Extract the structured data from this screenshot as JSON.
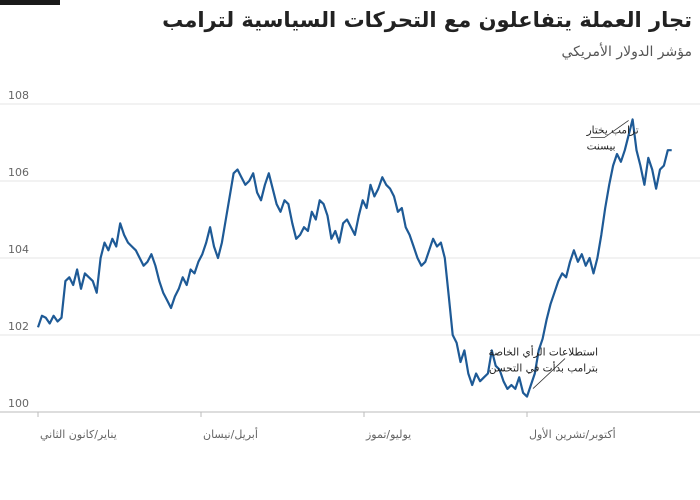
{
  "title": "تجار العملة يتفاعلون مع التحركات السياسية لترامب",
  "subtitle": "مؤشر الدولار الأمريكي",
  "colors": {
    "line": "#1e5a96",
    "grid": "#e6e6e6",
    "axis": "#bbbbbb",
    "text": "#222222"
  },
  "chart_data": {
    "type": "line",
    "ylim": [
      100,
      108
    ],
    "yticks": [
      100,
      102,
      104,
      106,
      108
    ],
    "xlim": [
      0,
      1
    ],
    "grid": true,
    "x_tick_labels": [
      {
        "label": "يناير/كانون الثاني",
        "x": 0.0
      },
      {
        "label": "أبريل/نيسان",
        "x": 0.25
      },
      {
        "label": "يوليو/تموز",
        "x": 0.5
      },
      {
        "label": "أكتوبر/تشرين الأول",
        "x": 0.75
      }
    ],
    "series": [
      {
        "values": [
          [
            0.0,
            102.2
          ],
          [
            0.006,
            102.5
          ],
          [
            0.012,
            102.45
          ],
          [
            0.018,
            102.3
          ],
          [
            0.024,
            102.5
          ],
          [
            0.03,
            102.35
          ],
          [
            0.036,
            102.45
          ],
          [
            0.042,
            103.4
          ],
          [
            0.048,
            103.5
          ],
          [
            0.054,
            103.3
          ],
          [
            0.06,
            103.7
          ],
          [
            0.066,
            103.2
          ],
          [
            0.072,
            103.6
          ],
          [
            0.078,
            103.5
          ],
          [
            0.084,
            103.4
          ],
          [
            0.09,
            103.1
          ],
          [
            0.096,
            104.0
          ],
          [
            0.102,
            104.4
          ],
          [
            0.108,
            104.2
          ],
          [
            0.114,
            104.5
          ],
          [
            0.12,
            104.3
          ],
          [
            0.126,
            104.9
          ],
          [
            0.132,
            104.6
          ],
          [
            0.138,
            104.4
          ],
          [
            0.144,
            104.3
          ],
          [
            0.15,
            104.2
          ],
          [
            0.156,
            104.0
          ],
          [
            0.162,
            103.8
          ],
          [
            0.168,
            103.9
          ],
          [
            0.174,
            104.1
          ],
          [
            0.18,
            103.8
          ],
          [
            0.186,
            103.4
          ],
          [
            0.192,
            103.1
          ],
          [
            0.198,
            102.9
          ],
          [
            0.204,
            102.7
          ],
          [
            0.21,
            103.0
          ],
          [
            0.216,
            103.2
          ],
          [
            0.222,
            103.5
          ],
          [
            0.228,
            103.3
          ],
          [
            0.234,
            103.7
          ],
          [
            0.24,
            103.6
          ],
          [
            0.246,
            103.9
          ],
          [
            0.252,
            104.1
          ],
          [
            0.258,
            104.4
          ],
          [
            0.264,
            104.8
          ],
          [
            0.27,
            104.3
          ],
          [
            0.276,
            104.0
          ],
          [
            0.282,
            104.4
          ],
          [
            0.288,
            105.0
          ],
          [
            0.294,
            105.6
          ],
          [
            0.3,
            106.2
          ],
          [
            0.306,
            106.3
          ],
          [
            0.312,
            106.1
          ],
          [
            0.318,
            105.9
          ],
          [
            0.324,
            106.0
          ],
          [
            0.33,
            106.2
          ],
          [
            0.336,
            105.7
          ],
          [
            0.342,
            105.5
          ],
          [
            0.348,
            105.9
          ],
          [
            0.354,
            106.2
          ],
          [
            0.36,
            105.8
          ],
          [
            0.366,
            105.4
          ],
          [
            0.372,
            105.2
          ],
          [
            0.378,
            105.5
          ],
          [
            0.384,
            105.4
          ],
          [
            0.39,
            104.9
          ],
          [
            0.396,
            104.5
          ],
          [
            0.402,
            104.6
          ],
          [
            0.408,
            104.8
          ],
          [
            0.414,
            104.7
          ],
          [
            0.42,
            105.2
          ],
          [
            0.426,
            105.0
          ],
          [
            0.432,
            105.5
          ],
          [
            0.438,
            105.4
          ],
          [
            0.444,
            105.1
          ],
          [
            0.45,
            104.5
          ],
          [
            0.456,
            104.7
          ],
          [
            0.462,
            104.4
          ],
          [
            0.468,
            104.9
          ],
          [
            0.474,
            105.0
          ],
          [
            0.48,
            104.8
          ],
          [
            0.486,
            104.6
          ],
          [
            0.492,
            105.1
          ],
          [
            0.498,
            105.5
          ],
          [
            0.504,
            105.3
          ],
          [
            0.51,
            105.9
          ],
          [
            0.516,
            105.6
          ],
          [
            0.522,
            105.8
          ],
          [
            0.528,
            106.1
          ],
          [
            0.534,
            105.9
          ],
          [
            0.54,
            105.8
          ],
          [
            0.546,
            105.6
          ],
          [
            0.552,
            105.2
          ],
          [
            0.558,
            105.3
          ],
          [
            0.564,
            104.8
          ],
          [
            0.57,
            104.6
          ],
          [
            0.576,
            104.3
          ],
          [
            0.582,
            104.0
          ],
          [
            0.588,
            103.8
          ],
          [
            0.594,
            103.9
          ],
          [
            0.6,
            104.2
          ],
          [
            0.606,
            104.5
          ],
          [
            0.612,
            104.3
          ],
          [
            0.618,
            104.4
          ],
          [
            0.624,
            104.0
          ],
          [
            0.63,
            103.0
          ],
          [
            0.636,
            102.0
          ],
          [
            0.642,
            101.8
          ],
          [
            0.648,
            101.3
          ],
          [
            0.654,
            101.6
          ],
          [
            0.66,
            101.0
          ],
          [
            0.666,
            100.7
          ],
          [
            0.672,
            101.0
          ],
          [
            0.678,
            100.8
          ],
          [
            0.684,
            100.9
          ],
          [
            0.69,
            101.0
          ],
          [
            0.696,
            101.6
          ],
          [
            0.702,
            101.2
          ],
          [
            0.708,
            101.1
          ],
          [
            0.714,
            100.8
          ],
          [
            0.72,
            100.6
          ],
          [
            0.726,
            100.7
          ],
          [
            0.732,
            100.6
          ],
          [
            0.738,
            100.9
          ],
          [
            0.744,
            100.5
          ],
          [
            0.75,
            100.4
          ],
          [
            0.756,
            100.7
          ],
          [
            0.762,
            101.0
          ],
          [
            0.768,
            101.6
          ],
          [
            0.774,
            101.9
          ],
          [
            0.78,
            102.4
          ],
          [
            0.786,
            102.8
          ],
          [
            0.792,
            103.1
          ],
          [
            0.798,
            103.4
          ],
          [
            0.804,
            103.6
          ],
          [
            0.81,
            103.5
          ],
          [
            0.816,
            103.9
          ],
          [
            0.822,
            104.2
          ],
          [
            0.828,
            103.9
          ],
          [
            0.834,
            104.1
          ],
          [
            0.84,
            103.8
          ],
          [
            0.846,
            104.0
          ],
          [
            0.852,
            103.6
          ],
          [
            0.858,
            104.0
          ],
          [
            0.864,
            104.6
          ],
          [
            0.87,
            105.3
          ],
          [
            0.876,
            105.9
          ],
          [
            0.882,
            106.4
          ],
          [
            0.888,
            106.7
          ],
          [
            0.894,
            106.5
          ],
          [
            0.9,
            106.8
          ],
          [
            0.906,
            107.2
          ],
          [
            0.912,
            107.6
          ],
          [
            0.918,
            106.8
          ],
          [
            0.924,
            106.4
          ],
          [
            0.93,
            105.9
          ],
          [
            0.936,
            106.6
          ],
          [
            0.942,
            106.3
          ],
          [
            0.948,
            105.8
          ],
          [
            0.954,
            106.3
          ],
          [
            0.96,
            106.4
          ],
          [
            0.966,
            106.8
          ],
          [
            0.972,
            106.8
          ]
        ]
      }
    ],
    "annotations": [
      {
        "lines": [
          "ترامب يختار",
          "بيسنت"
        ],
        "x": 0.912,
        "y": 107.6
      },
      {
        "lines": [
          "استطلاعات الرأي الخاصة",
          "بترامب  بدأت في التحسن"
        ],
        "x": 0.75,
        "y": 100.4
      }
    ]
  }
}
